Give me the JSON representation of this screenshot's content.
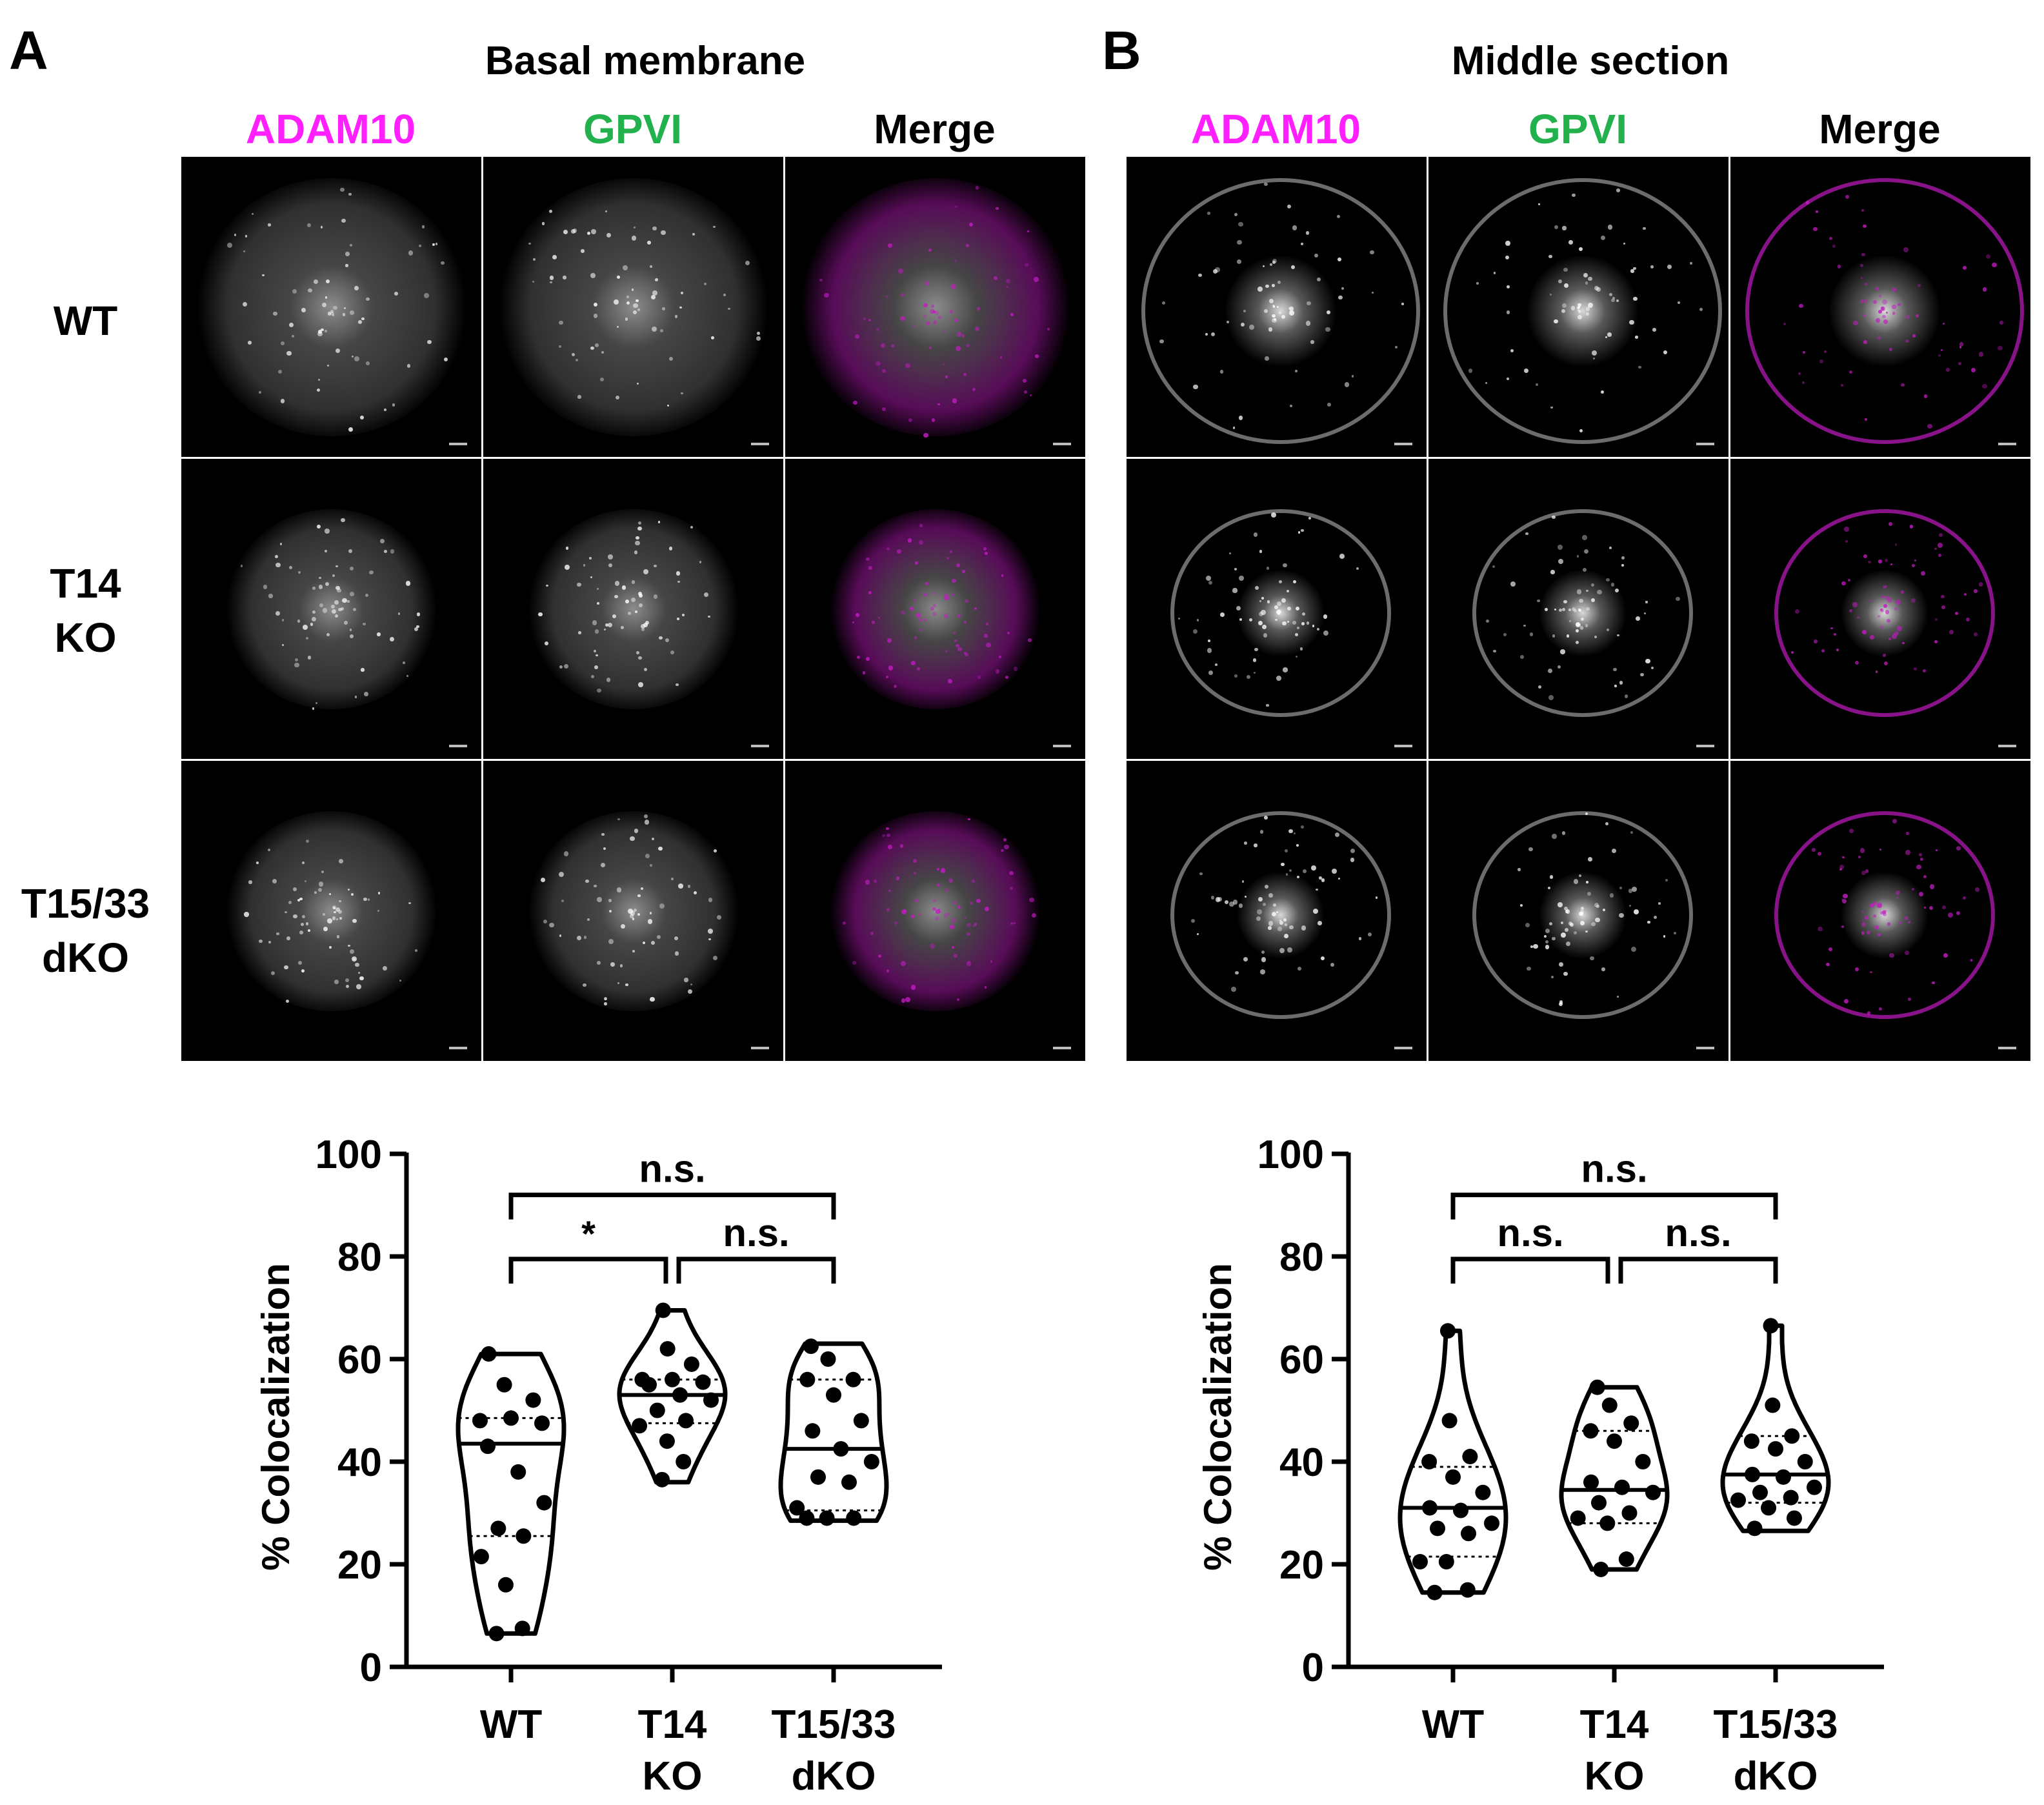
{
  "panel_a": {
    "letter": "A",
    "title": "Basal membrane",
    "channels": [
      {
        "label": "ADAM10",
        "color": "#ff1fff"
      },
      {
        "label": "GPVI",
        "color": "#22b14c"
      },
      {
        "label": "Merge",
        "color": "#000000"
      }
    ],
    "rows": [
      {
        "line1": "WT",
        "line2": ""
      },
      {
        "line1": "T14",
        "line2": "KO"
      },
      {
        "line1": "T15/33",
        "line2": "dKO"
      }
    ]
  },
  "panel_b": {
    "letter": "B",
    "title": "Middle section",
    "channels": [
      {
        "label": "ADAM10",
        "color": "#ff1fff"
      },
      {
        "label": "GPVI",
        "color": "#22b14c"
      },
      {
        "label": "Merge",
        "color": "#000000"
      }
    ],
    "rows": [
      {
        "line1": "WT",
        "line2": ""
      },
      {
        "line1": "T14",
        "line2": "KO"
      },
      {
        "line1": "T15/33",
        "line2": "dKO"
      }
    ]
  },
  "colors": {
    "adam10": "#ff1fff",
    "gpvi": "#22b14c",
    "merge_magenta": "#c21bc2"
  },
  "chart_data": [
    {
      "type": "violin",
      "ylabel": "% Colocalization",
      "ylim": [
        0,
        100
      ],
      "yticks": [
        0,
        20,
        40,
        60,
        80,
        100
      ],
      "categories": [
        {
          "line1": "WT",
          "line2": ""
        },
        {
          "line1": "T14",
          "line2": "KO"
        },
        {
          "line1": "T15/33",
          "line2": "dKO"
        }
      ],
      "groups": [
        {
          "min": 6.5,
          "max": 61,
          "median": 43.5,
          "q1": 25.5,
          "q3": 48.5,
          "points": [
            61,
            55,
            52,
            48,
            48.5,
            47.5,
            43,
            38,
            32,
            27,
            25.5,
            21.5,
            16,
            7.5,
            6.5
          ]
        },
        {
          "min": 36,
          "max": 69.5,
          "median": 53,
          "q1": 47.5,
          "q3": 56,
          "points": [
            69.5,
            62,
            59,
            56,
            56,
            55.5,
            55,
            53,
            52,
            50,
            48,
            47,
            44,
            40,
            36.5
          ]
        },
        {
          "min": 28.5,
          "max": 63,
          "median": 42.5,
          "q1": 30.5,
          "q3": 56,
          "points": [
            62.5,
            60,
            56,
            56,
            53,
            48,
            46,
            42.5,
            40,
            37,
            36,
            31,
            29,
            29,
            29
          ]
        }
      ],
      "comparisons": [
        {
          "from": 0,
          "to": 2,
          "label": "n.s.",
          "level": 92
        },
        {
          "from": 0,
          "to": 1,
          "label": "*",
          "level": 79.5
        },
        {
          "from": 1,
          "to": 2,
          "label": "n.s.",
          "level": 79.5
        }
      ]
    },
    {
      "type": "violin",
      "ylabel": "% Colocalization",
      "ylim": [
        0,
        100
      ],
      "yticks": [
        0,
        20,
        40,
        60,
        80,
        100
      ],
      "categories": [
        {
          "line1": "WT",
          "line2": ""
        },
        {
          "line1": "T14",
          "line2": "KO"
        },
        {
          "line1": "T15/33",
          "line2": "dKO"
        }
      ],
      "groups": [
        {
          "min": 14.5,
          "max": 65.5,
          "median": 31,
          "q1": 21.5,
          "q3": 39,
          "points": [
            65.5,
            48,
            41,
            40,
            37,
            34,
            31,
            30.5,
            28,
            27,
            26,
            20.5,
            20.5,
            15,
            14.5
          ]
        },
        {
          "min": 19,
          "max": 54.5,
          "median": 34.5,
          "q1": 28,
          "q3": 46,
          "points": [
            54.5,
            51,
            47.5,
            46,
            44,
            40,
            36,
            35,
            34,
            32,
            30,
            29,
            28,
            21,
            19
          ]
        },
        {
          "min": 26.5,
          "max": 66.5,
          "median": 37.5,
          "q1": 32,
          "q3": 45,
          "points": [
            66.5,
            51,
            45,
            44,
            42.5,
            40,
            37.5,
            37,
            35,
            34,
            33,
            32.5,
            31,
            29,
            27
          ]
        }
      ],
      "comparisons": [
        {
          "from": 0,
          "to": 2,
          "label": "n.s.",
          "level": 92
        },
        {
          "from": 0,
          "to": 1,
          "label": "n.s.",
          "level": 79.5
        },
        {
          "from": 1,
          "to": 2,
          "label": "n.s.",
          "level": 79.5
        }
      ]
    }
  ]
}
